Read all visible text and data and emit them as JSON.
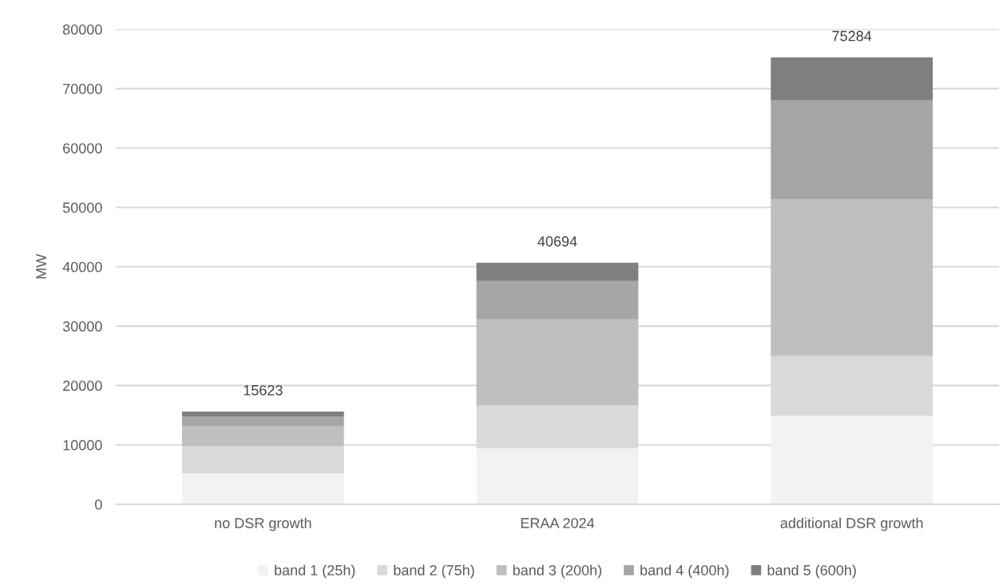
{
  "chart_data": {
    "type": "bar",
    "stacked": true,
    "ylabel": "MW",
    "categories": [
      "no DSR growth",
      "ERAA 2024",
      "additional DSR growth"
    ],
    "series": [
      {
        "name": "band 1 (25h)",
        "color": "#f2f2f2",
        "values": [
          5200,
          9430,
          14900
        ]
      },
      {
        "name": "band 2 (75h)",
        "color": "#d9d9d9",
        "values": [
          4600,
          7270,
          10100
        ]
      },
      {
        "name": "band 3 (200h)",
        "color": "#bfbfbf",
        "values": [
          3400,
          14410,
          26400
        ]
      },
      {
        "name": "band 4 (400h)",
        "color": "#a6a6a6",
        "values": [
          1600,
          6470,
          16600
        ]
      },
      {
        "name": "band 5 (600h)",
        "color": "#7f7f7f",
        "values": [
          823,
          3114,
          7284
        ]
      }
    ],
    "totals": [
      "15623",
      "40694",
      "75284"
    ],
    "ylim": [
      0,
      80000
    ],
    "yticks": [
      0,
      10000,
      20000,
      30000,
      40000,
      50000,
      60000,
      70000,
      80000
    ],
    "grid": "y",
    "legend": "bottom"
  }
}
